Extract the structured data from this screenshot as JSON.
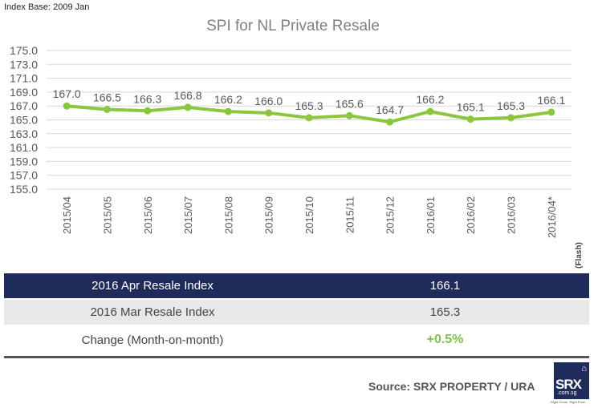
{
  "index_base": "Index Base: 2009 Jan",
  "chart_data": {
    "type": "line",
    "title": "SPI for NL Private Resale",
    "categories": [
      "2015/04",
      "2015/05",
      "2015/06",
      "2015/07",
      "2015/08",
      "2015/09",
      "2015/10",
      "2015/11",
      "2015/12",
      "2016/01",
      "2016/02",
      "2016/03",
      "2016/04*"
    ],
    "values": [
      167.0,
      166.5,
      166.3,
      166.8,
      166.2,
      166.0,
      165.3,
      165.6,
      164.7,
      166.2,
      165.1,
      165.3,
      166.1
    ],
    "data_labels": [
      "167.0",
      "166.5",
      "166.3",
      "166.8",
      "166.2",
      "166.0",
      "165.3",
      "165.6",
      "164.7",
      "166.2",
      "165.1",
      "165.3",
      "166.1"
    ],
    "yticks": [
      "155.0",
      "157.0",
      "159.0",
      "161.0",
      "163.0",
      "165.0",
      "167.0",
      "169.0",
      "171.0",
      "173.0",
      "175.0"
    ],
    "ylim": [
      155,
      175
    ],
    "grid": true,
    "line_color": "#8cc63f",
    "note": "(Flash)"
  },
  "table": {
    "rows": [
      {
        "label": "2016 Apr Resale Index",
        "value": "166.1"
      },
      {
        "label": "2016 Mar Resale Index",
        "value": "165.3"
      },
      {
        "label": "Change (Month-on-month)",
        "value": "+0.5%"
      }
    ],
    "header_color": "#1f2b5b",
    "change_color": "#7dc34a"
  },
  "footer": {
    "source": "Source:  SRX PROPERTY / URA",
    "logo_text": "SRX",
    "logo_sub": ".com.sg",
    "logo_tagline": "Right Home. Right Price."
  }
}
